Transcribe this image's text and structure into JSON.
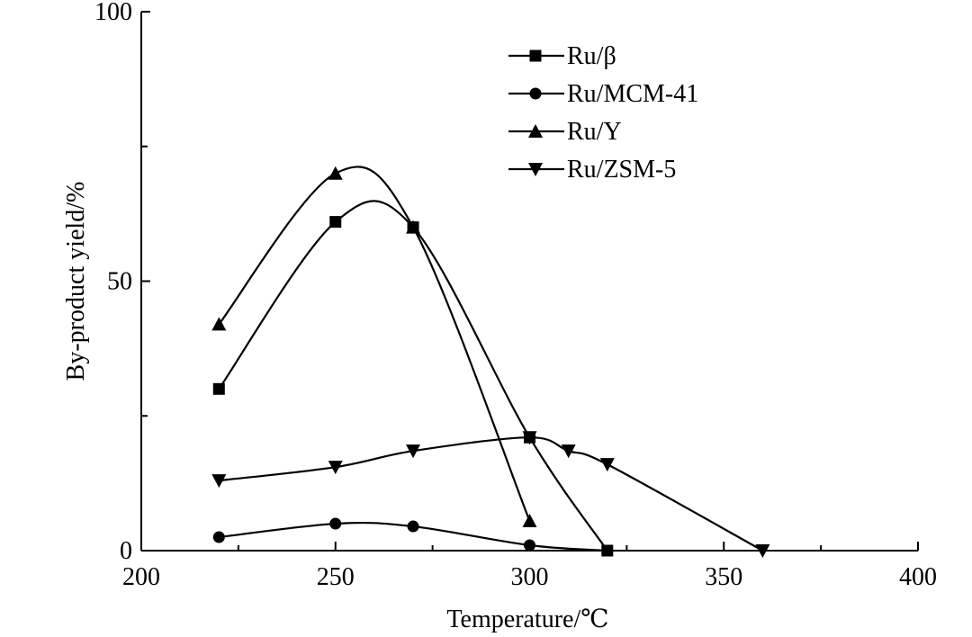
{
  "chart_data": {
    "type": "line",
    "xlabel": "Temperature/℃",
    "ylabel": "By-product yield/%",
    "xlim": [
      200,
      400
    ],
    "ylim": [
      0,
      100
    ],
    "x_ticks": [
      "200",
      "250",
      "300",
      "350",
      "400"
    ],
    "y_ticks": [
      "0",
      "50",
      "100"
    ],
    "grid": false,
    "legend_position": "top-right",
    "series": [
      {
        "name": "Ru/β",
        "marker": "square",
        "points": [
          [
            220,
            30
          ],
          [
            250,
            61
          ],
          [
            270,
            60
          ],
          [
            300,
            21
          ],
          [
            320,
            0
          ]
        ]
      },
      {
        "name": "Ru/MCM-41",
        "marker": "circle",
        "points": [
          [
            220,
            2.5
          ],
          [
            250,
            5
          ],
          [
            270,
            4.5
          ],
          [
            300,
            1
          ],
          [
            320,
            0
          ]
        ]
      },
      {
        "name": "Ru/Y",
        "marker": "triangle-up",
        "points": [
          [
            220,
            42
          ],
          [
            250,
            70
          ],
          [
            270,
            60
          ],
          [
            300,
            5.5
          ]
        ]
      },
      {
        "name": "Ru/ZSM-5",
        "marker": "triangle-down",
        "points": [
          [
            220,
            13
          ],
          [
            250,
            15.5
          ],
          [
            270,
            18.5
          ],
          [
            300,
            21
          ],
          [
            310,
            18.5
          ],
          [
            320,
            16
          ],
          [
            360,
            0
          ]
        ]
      }
    ]
  }
}
